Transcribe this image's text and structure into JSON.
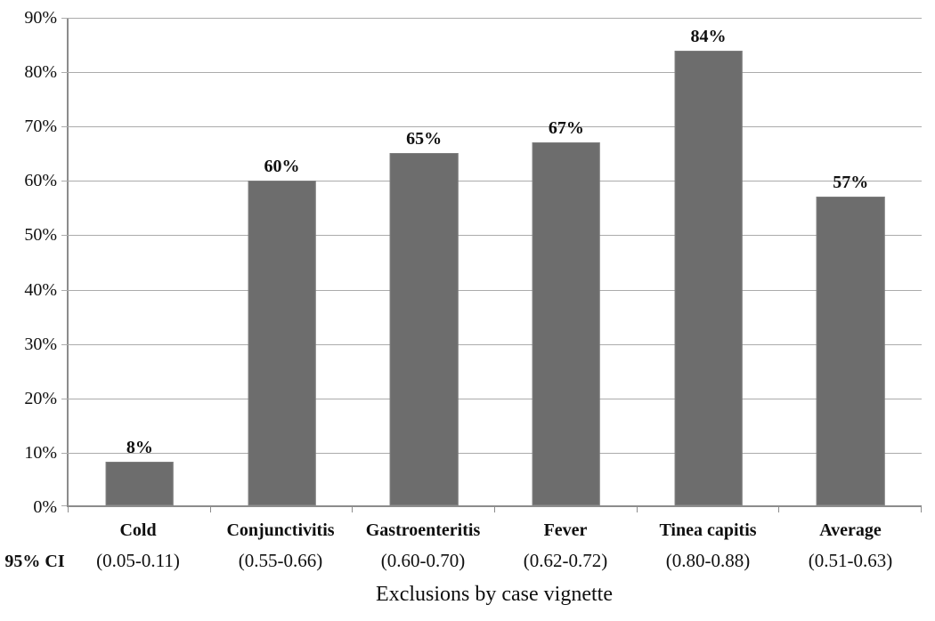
{
  "chart_data": {
    "type": "bar",
    "title": "",
    "xlabel": "Exclusions by case vignette",
    "ylabel": "",
    "ylim": [
      0,
      90
    ],
    "ytick_step": 10,
    "ytick_labels": [
      "90%",
      "80%",
      "70%",
      "60%",
      "50%",
      "40%",
      "30%",
      "20%",
      "10%",
      "0%"
    ],
    "categories": [
      "Cold",
      "Conjunctivitis",
      "Gastroenteritis",
      "Fever",
      "Tinea capitis",
      "Average"
    ],
    "values": [
      8,
      60,
      65,
      67,
      84,
      57
    ],
    "value_labels": [
      "8%",
      "60%",
      "65%",
      "67%",
      "84%",
      "57%"
    ],
    "ci_row_label": "95% CI",
    "ci_values": [
      "(0.05-0.11)",
      "(0.55-0.66)",
      "(0.60-0.70)",
      "(0.62-0.72)",
      "(0.80-0.88)",
      "(0.51-0.63)"
    ],
    "grid": true,
    "legend": false,
    "colors": {
      "bar": "#6d6d6d",
      "bar_border": "#7e7e7e",
      "gridline": "#ababab",
      "axis": "#8c8c8c",
      "background": "#ffffff",
      "text": "#0f0f0f"
    }
  }
}
